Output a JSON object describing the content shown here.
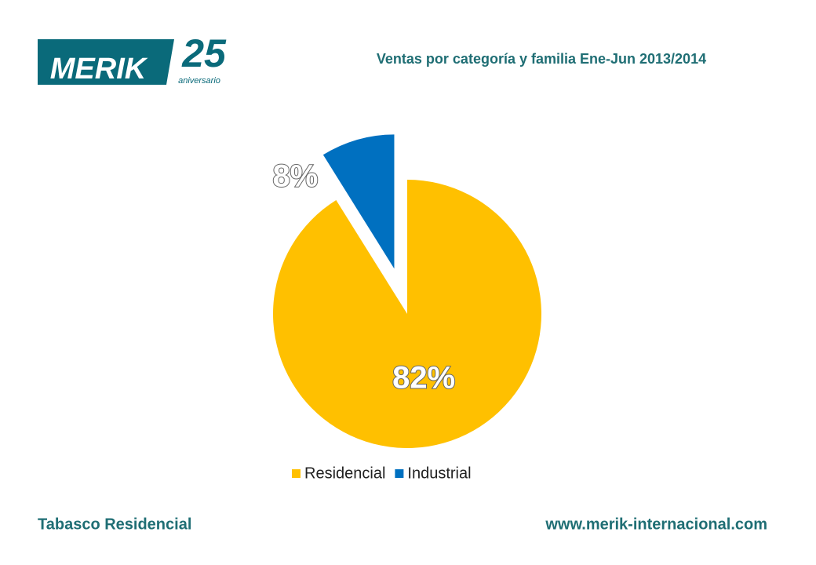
{
  "logo": {
    "brand": "MERIK",
    "number": "25",
    "tagline": "aniversario"
  },
  "chart_data": {
    "type": "pie",
    "title": "Ventas por categoría y familia Ene-Jun 2013/2014",
    "categories": [
      "Residencial",
      "Industrial"
    ],
    "values": [
      82,
      8
    ],
    "value_labels": [
      "82%",
      "8%"
    ],
    "colors": [
      "#ffc000",
      "#0070c0"
    ],
    "explode": [
      false,
      true
    ],
    "legend": "bottom"
  },
  "footer": {
    "left": "Tabasco Residencial",
    "right": "www.merik-internacional.com"
  }
}
